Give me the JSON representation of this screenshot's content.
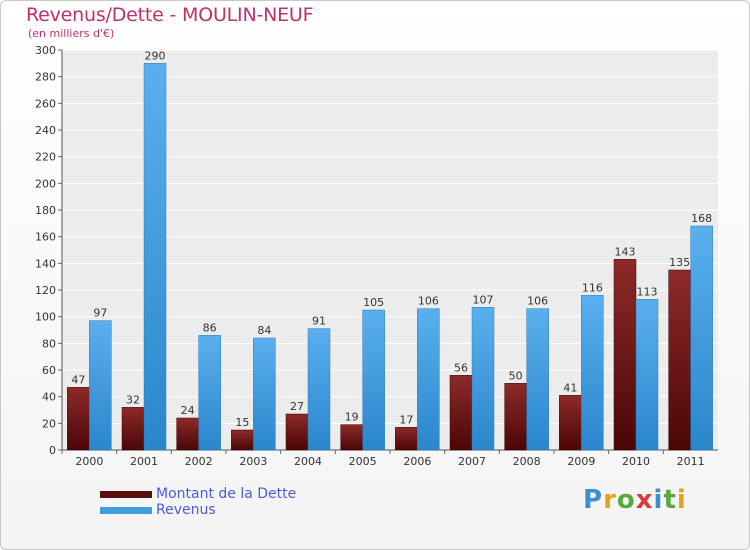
{
  "chart_data": {
    "type": "bar",
    "title": "Revenus/Dette - MOULIN-NEUF",
    "subtitle": "(en milliers d'€)",
    "categories": [
      "2000",
      "2001",
      "2002",
      "2003",
      "2004",
      "2005",
      "2006",
      "2007",
      "2008",
      "2009",
      "2010",
      "2011"
    ],
    "series": [
      {
        "name": "Montant de la Dette",
        "color": "#7a1a1a",
        "values": [
          47,
          32,
          24,
          15,
          27,
          19,
          17,
          56,
          50,
          41,
          143,
          135
        ]
      },
      {
        "name": "Revenus",
        "color": "#3e9ee0",
        "values": [
          97,
          290,
          86,
          84,
          91,
          105,
          106,
          107,
          106,
          116,
          113,
          168
        ]
      }
    ],
    "ylim": [
      0,
      300
    ],
    "yticks": [
      0,
      20,
      40,
      60,
      80,
      100,
      120,
      140,
      160,
      180,
      200,
      220,
      240,
      260,
      280,
      300
    ],
    "grid": true,
    "legend": "bottom-left"
  },
  "logo": {
    "text": "Proxiti"
  }
}
